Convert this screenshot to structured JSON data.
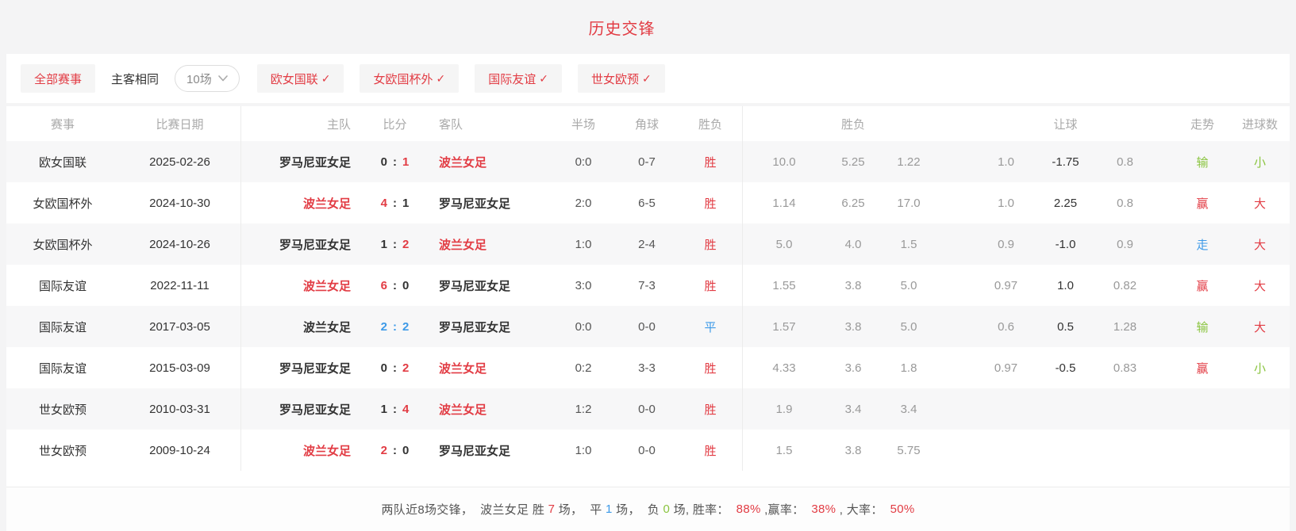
{
  "title": "历史交锋",
  "colors": {
    "red": "#e23c44",
    "green": "#8ac43f",
    "blue": "#3d9ae8",
    "dark": "#333333",
    "gray": "#999999"
  },
  "icons": {
    "check": "✓",
    "chevron_down": "chevron-down"
  },
  "filters": {
    "all_label": "全部赛事",
    "same_venue_label": "主客相同",
    "count_dropdown_value": "10场",
    "leagues": [
      {
        "label": "欧女国联",
        "checked": true
      },
      {
        "label": "女欧国杯外",
        "checked": true
      },
      {
        "label": "国际友谊",
        "checked": true
      },
      {
        "label": "世女欧预",
        "checked": true
      }
    ]
  },
  "table": {
    "headers": {
      "league": "赛事",
      "date": "比赛日期",
      "home": "主队",
      "score": "比分",
      "away": "客队",
      "half": "半场",
      "corner": "角球",
      "result": "胜负",
      "odds": "胜负",
      "handicap": "让球",
      "trend": "走势",
      "goals": "进球数"
    },
    "rows": [
      {
        "league": "欧女国联",
        "date": "2025-02-26",
        "home": "罗马尼亚女足",
        "home_color": "dark",
        "score_home": "0",
        "score_home_color": "dark",
        "score_colon": ":",
        "score_colon_color": "dark",
        "score_away": "1",
        "score_away_color": "red",
        "away": "波兰女足",
        "away_color": "red",
        "half": "0:0",
        "corner": "0-7",
        "result": "胜",
        "result_color": "red",
        "odds": [
          "10.0",
          "5.25",
          "1.22"
        ],
        "handicap": [
          "1.0",
          "-1.75",
          "0.8"
        ],
        "trend": "输",
        "trend_color": "green",
        "goals": "小",
        "goals_color": "green"
      },
      {
        "league": "女欧国杯外",
        "date": "2024-10-30",
        "home": "波兰女足",
        "home_color": "red",
        "score_home": "4",
        "score_home_color": "red",
        "score_colon": ":",
        "score_colon_color": "dark",
        "score_away": "1",
        "score_away_color": "dark",
        "away": "罗马尼亚女足",
        "away_color": "dark",
        "half": "2:0",
        "corner": "6-5",
        "result": "胜",
        "result_color": "red",
        "odds": [
          "1.14",
          "6.25",
          "17.0"
        ],
        "handicap": [
          "1.0",
          "2.25",
          "0.8"
        ],
        "trend": "赢",
        "trend_color": "red",
        "goals": "大",
        "goals_color": "red"
      },
      {
        "league": "女欧国杯外",
        "date": "2024-10-26",
        "home": "罗马尼亚女足",
        "home_color": "dark",
        "score_home": "1",
        "score_home_color": "dark",
        "score_colon": ":",
        "score_colon_color": "dark",
        "score_away": "2",
        "score_away_color": "red",
        "away": "波兰女足",
        "away_color": "red",
        "half": "1:0",
        "corner": "2-4",
        "result": "胜",
        "result_color": "red",
        "odds": [
          "5.0",
          "4.0",
          "1.5"
        ],
        "handicap": [
          "0.9",
          "-1.0",
          "0.9"
        ],
        "trend": "走",
        "trend_color": "blue",
        "goals": "大",
        "goals_color": "red"
      },
      {
        "league": "国际友谊",
        "date": "2022-11-11",
        "home": "波兰女足",
        "home_color": "red",
        "score_home": "6",
        "score_home_color": "red",
        "score_colon": ":",
        "score_colon_color": "dark",
        "score_away": "0",
        "score_away_color": "dark",
        "away": "罗马尼亚女足",
        "away_color": "dark",
        "half": "3:0",
        "corner": "7-3",
        "result": "胜",
        "result_color": "red",
        "odds": [
          "1.55",
          "3.8",
          "5.0"
        ],
        "handicap": [
          "0.97",
          "1.0",
          "0.82"
        ],
        "trend": "赢",
        "trend_color": "red",
        "goals": "大",
        "goals_color": "red"
      },
      {
        "league": "国际友谊",
        "date": "2017-03-05",
        "home": "波兰女足",
        "home_color": "dark",
        "score_home": "2",
        "score_home_color": "blue",
        "score_colon": ":",
        "score_colon_color": "blue",
        "score_away": "2",
        "score_away_color": "blue",
        "away": "罗马尼亚女足",
        "away_color": "dark",
        "half": "0:0",
        "corner": "0-0",
        "result": "平",
        "result_color": "blue",
        "odds": [
          "1.57",
          "3.8",
          "5.0"
        ],
        "handicap": [
          "0.6",
          "0.5",
          "1.28"
        ],
        "trend": "输",
        "trend_color": "green",
        "goals": "大",
        "goals_color": "red"
      },
      {
        "league": "国际友谊",
        "date": "2015-03-09",
        "home": "罗马尼亚女足",
        "home_color": "dark",
        "score_home": "0",
        "score_home_color": "dark",
        "score_colon": ":",
        "score_colon_color": "dark",
        "score_away": "2",
        "score_away_color": "red",
        "away": "波兰女足",
        "away_color": "red",
        "half": "0:2",
        "corner": "3-3",
        "result": "胜",
        "result_color": "red",
        "odds": [
          "4.33",
          "3.6",
          "1.8"
        ],
        "handicap": [
          "0.97",
          "-0.5",
          "0.83"
        ],
        "trend": "赢",
        "trend_color": "red",
        "goals": "小",
        "goals_color": "green"
      },
      {
        "league": "世女欧预",
        "date": "2010-03-31",
        "home": "罗马尼亚女足",
        "home_color": "dark",
        "score_home": "1",
        "score_home_color": "dark",
        "score_colon": ":",
        "score_colon_color": "dark",
        "score_away": "4",
        "score_away_color": "red",
        "away": "波兰女足",
        "away_color": "red",
        "half": "1:2",
        "corner": "0-0",
        "result": "胜",
        "result_color": "red",
        "odds": [
          "1.9",
          "3.4",
          "3.4"
        ],
        "handicap": [],
        "trend": "",
        "trend_color": "dark",
        "goals": "",
        "goals_color": "dark"
      },
      {
        "league": "世女欧预",
        "date": "2009-10-24",
        "home": "波兰女足",
        "home_color": "red",
        "score_home": "2",
        "score_home_color": "red",
        "score_colon": ":",
        "score_colon_color": "dark",
        "score_away": "0",
        "score_away_color": "dark",
        "away": "罗马尼亚女足",
        "away_color": "dark",
        "half": "1:0",
        "corner": "0-0",
        "result": "胜",
        "result_color": "red",
        "odds": [
          "1.5",
          "3.8",
          "5.75"
        ],
        "handicap": [],
        "trend": "",
        "trend_color": "dark",
        "goals": "",
        "goals_color": "dark"
      }
    ]
  },
  "summary": {
    "segments": [
      {
        "text": "两队近8场交锋，  波兰女足 胜 ",
        "color": ""
      },
      {
        "text": "7",
        "color": "red"
      },
      {
        "text": " 场，  平 ",
        "color": ""
      },
      {
        "text": "1",
        "color": "blue"
      },
      {
        "text": " 场，  负 ",
        "color": ""
      },
      {
        "text": "0",
        "color": "green"
      },
      {
        "text": " 场, 胜率：  ",
        "color": ""
      },
      {
        "text": "88%",
        "color": "red"
      },
      {
        "text": " ,赢率：  ",
        "color": ""
      },
      {
        "text": "38%",
        "color": "red"
      },
      {
        "text": " , 大率：  ",
        "color": ""
      },
      {
        "text": "50%",
        "color": "red"
      }
    ]
  }
}
